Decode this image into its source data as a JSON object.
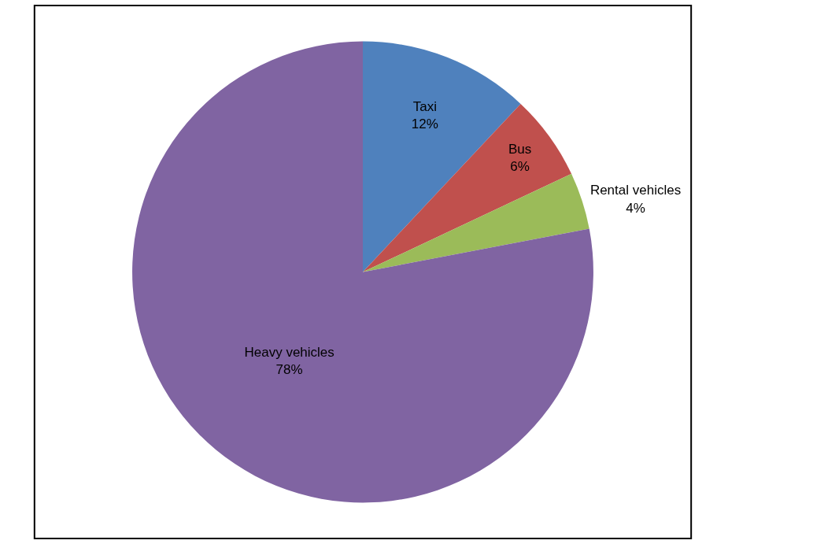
{
  "chart_data": {
    "type": "pie",
    "categories": [
      "Taxi",
      "Bus",
      "Rental vehicles",
      "Heavy vehicles"
    ],
    "values": [
      12,
      6,
      4,
      78
    ],
    "colors": [
      "#4f81bd",
      "#c0504d",
      "#9bbb59",
      "#8064a2"
    ],
    "value_labels": [
      "12%",
      "6%",
      "4%",
      "78%"
    ],
    "legend": false
  }
}
